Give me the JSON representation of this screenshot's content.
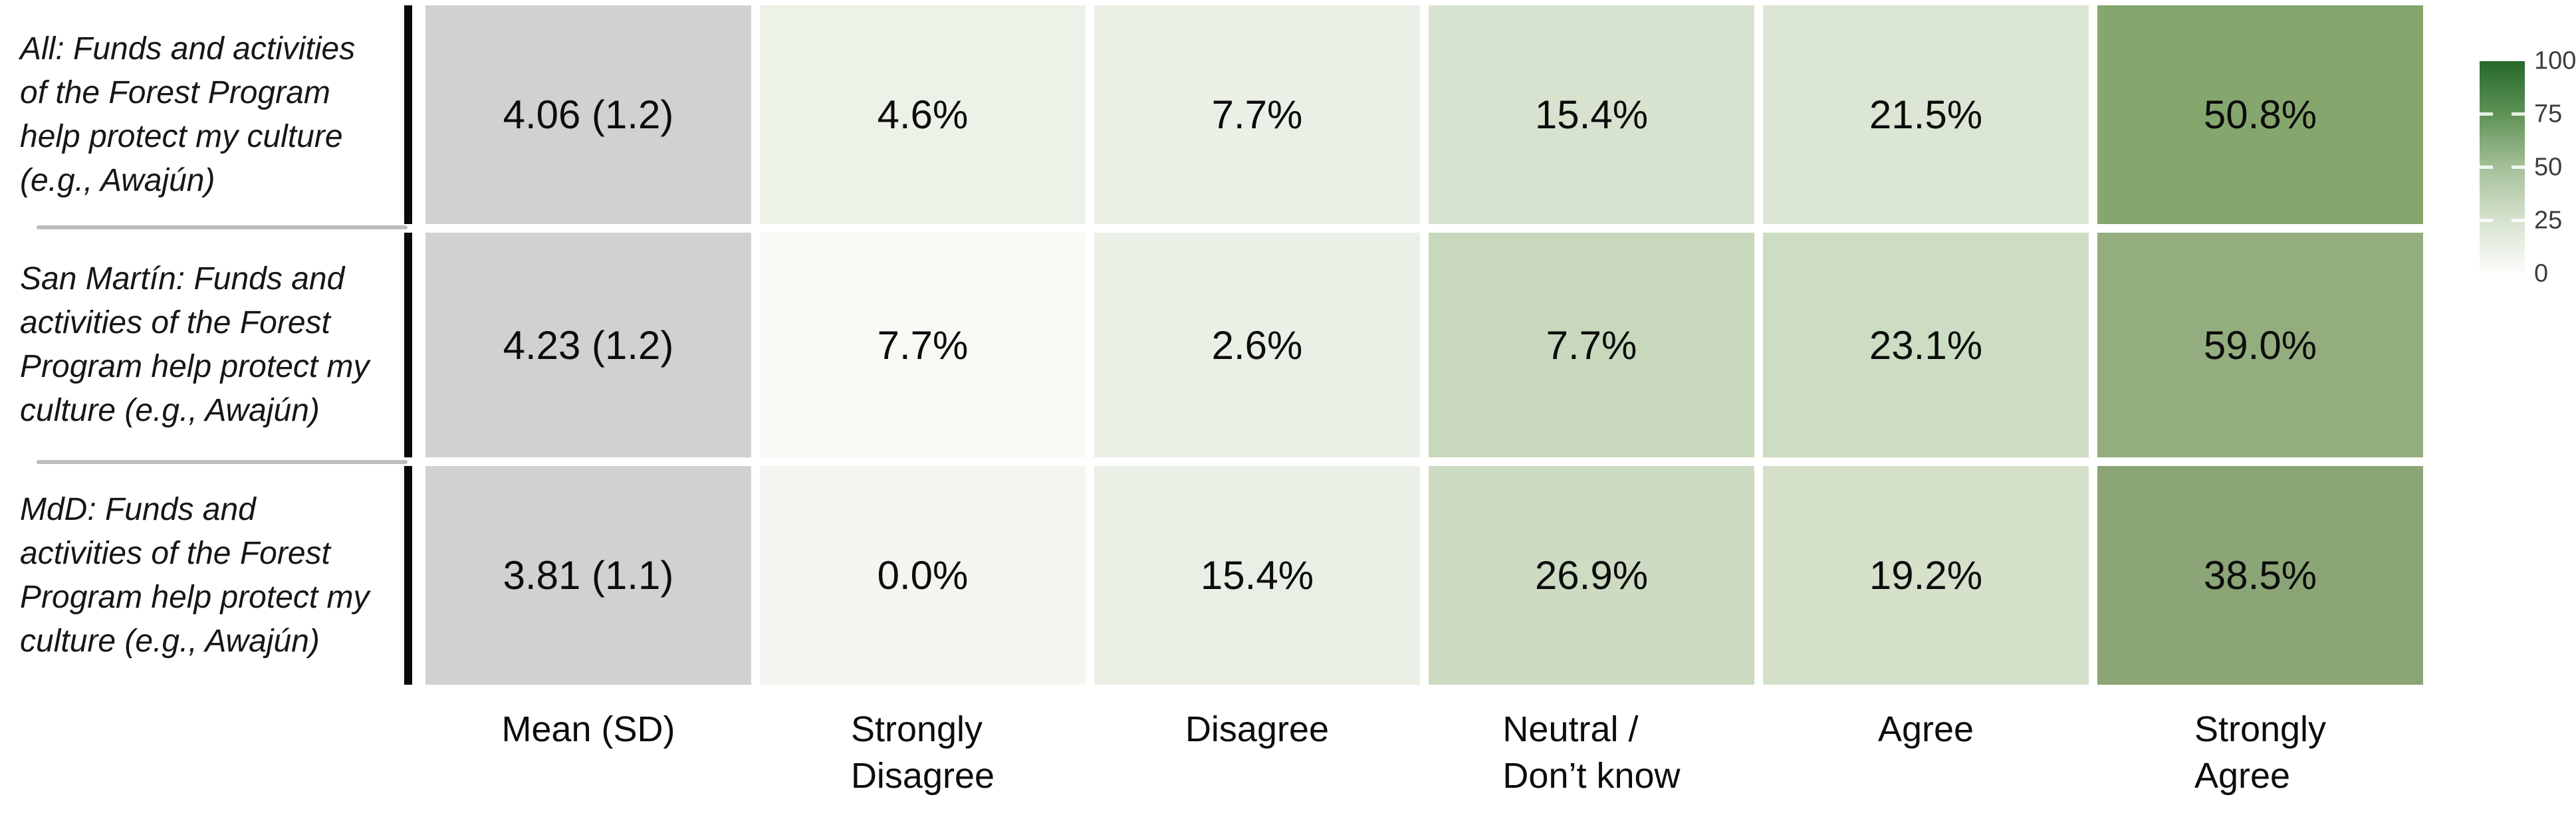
{
  "figure": {
    "background": "#ffffff",
    "row_divider_color": "#bcbcbc",
    "axis_bar_color": "#0a0a0a"
  },
  "legend": {
    "tick_labels": [
      "100",
      "75",
      "50",
      "25",
      "0"
    ],
    "gradient": {
      "c100": "#26682b",
      "c75": "#5f9356",
      "c50": "#a5c099",
      "c25": "#d7e3cf",
      "c0": "#fdfdfc"
    }
  },
  "chart_data": {
    "type": "heatmap",
    "title": "",
    "legend": {
      "min": 0,
      "max": 100,
      "ticks": [
        0,
        25,
        50,
        75,
        100
      ],
      "position": "right"
    },
    "columns": [
      "Mean (SD)",
      "Strongly\nDisagree",
      "Disagree",
      "Neutral /\nDon’t know",
      "Agree",
      "Strongly\nAgree"
    ],
    "rows": [
      {
        "label": "All: Funds and activities\nof the Forest Program\nhelp protect my culture\n(e.g., Awajún)",
        "mean": 4.06,
        "sd": 1.2,
        "values_pct": [
          4.6,
          7.7,
          15.4,
          21.5,
          50.8
        ],
        "cells": [
          {
            "text": "4.06 (1.2)",
            "bg": "#d2d1d0"
          },
          {
            "text": "4.6%",
            "bg": "#edf2e9"
          },
          {
            "text": "7.7%",
            "bg": "#eaf0e6"
          },
          {
            "text": "15.4%",
            "bg": "#d8e3cf"
          },
          {
            "text": "21.5%",
            "bg": "#dce6d4"
          },
          {
            "text": "50.8%",
            "bg": "#85a76d"
          }
        ]
      },
      {
        "label": "San Martín: Funds and\nactivities of the Forest\nProgram help protect my\nculture (e.g., Awajún)",
        "mean": 4.23,
        "sd": 1.2,
        "values_pct": [
          7.7,
          2.6,
          7.7,
          23.1,
          59.0
        ],
        "cells": [
          {
            "text": "4.23 (1.2)",
            "bg": "#d2d1d0"
          },
          {
            "text": "7.7%",
            "bg": "#f7f9f4"
          },
          {
            "text": "2.6%",
            "bg": "#eaf0e5"
          },
          {
            "text": "7.7%",
            "bg": "#c8d8bd"
          },
          {
            "text": "23.1%",
            "bg": "#cdddc3"
          },
          {
            "text": "59.0%",
            "bg": "#94ad7e"
          }
        ]
      },
      {
        "label": "MdD: Funds and\nactivities of the Forest\nProgram help protect my\nculture (e.g., Awajún)",
        "mean": 3.81,
        "sd": 1.1,
        "values_pct": [
          0.0,
          15.4,
          26.9,
          19.2,
          38.5
        ],
        "cells": [
          {
            "text": "3.81 (1.1)",
            "bg": "#d2d1d0"
          },
          {
            "text": "0.0%",
            "bg": "#f3f6f0"
          },
          {
            "text": "15.4%",
            "bg": "#e9efe5"
          },
          {
            "text": "26.9%",
            "bg": "#ccdbc2"
          },
          {
            "text": "19.2%",
            "bg": "#d5e1cb"
          },
          {
            "text": "38.5%",
            "bg": "#8ba576"
          }
        ]
      }
    ]
  }
}
